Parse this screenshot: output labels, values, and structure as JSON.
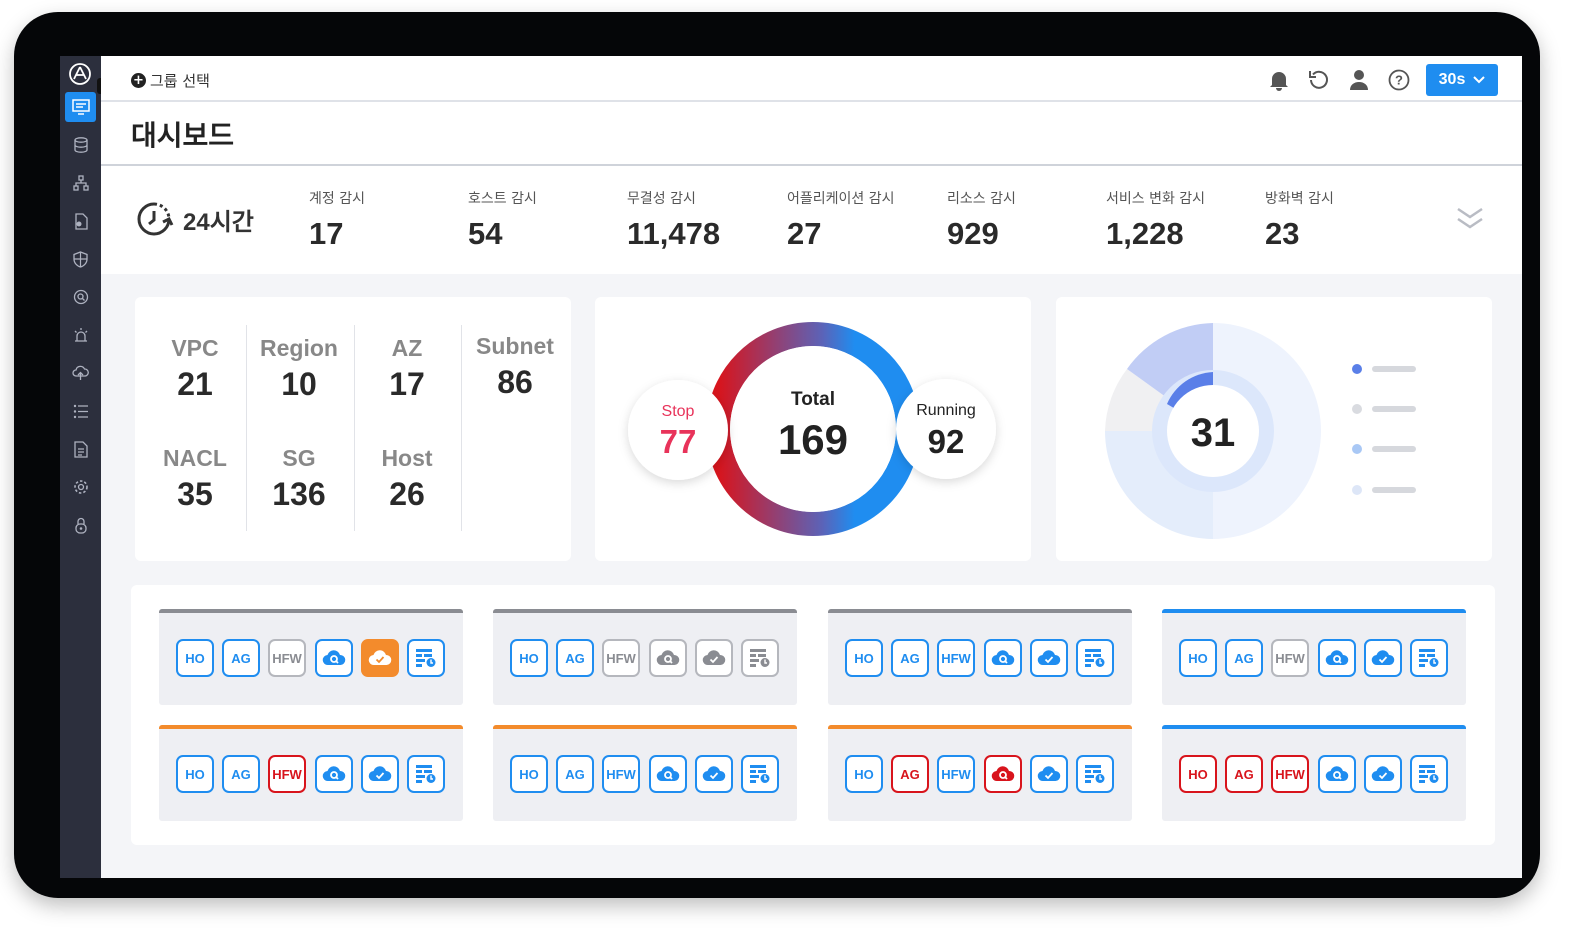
{
  "topbar": {
    "group_select_label": "그룹 선택",
    "icons": [
      "bell-icon",
      "refresh-icon",
      "user-icon",
      "help-icon"
    ],
    "interval": "30s"
  },
  "page": {
    "title": "대시보드"
  },
  "stats": {
    "period": "24시간",
    "items": [
      {
        "label": "계정 감시",
        "value": "17"
      },
      {
        "label": "호스트 감시",
        "value": "54"
      },
      {
        "label": "무결성 감시",
        "value": "11,478"
      },
      {
        "label": "어플리케이션 감시",
        "value": "27"
      },
      {
        "label": "리소스 감시",
        "value": "929"
      },
      {
        "label": "서비스 변화 감시",
        "value": "1,228"
      },
      {
        "label": "방화벽 감시",
        "value": "23"
      }
    ]
  },
  "resources": [
    {
      "label": "VPC",
      "value": "21"
    },
    {
      "label": "Region",
      "value": "10"
    },
    {
      "label": "AZ",
      "value": "17"
    },
    {
      "label": "Subnet",
      "value": "86"
    },
    {
      "label": "NACL",
      "value": "35"
    },
    {
      "label": "SG",
      "value": "136"
    },
    {
      "label": "Host",
      "value": "26"
    }
  ],
  "instances": {
    "total_label": "Total",
    "total_value": "169",
    "stop_label": "Stop",
    "stop_value": "77",
    "running_label": "Running",
    "running_value": "92",
    "colors": {
      "stop": "#e8335a",
      "running": "#1f8df0",
      "stop_ring": "#d8141c"
    }
  },
  "donut": {
    "center_value": "31",
    "legend_colors": [
      "#5a7fe8",
      "#d9dbe0",
      "#a9c8f5",
      "#dde6f7"
    ]
  },
  "tiles": [
    {
      "top": "#8a8c92",
      "badges": [
        [
          "HO",
          "blue"
        ],
        [
          "AG",
          "blue"
        ],
        [
          "HFW",
          "grey"
        ],
        [
          "cloud-search",
          "blue"
        ],
        [
          "cloud-check",
          "orange"
        ],
        [
          "firewall",
          "blue"
        ]
      ]
    },
    {
      "top": "#8a8c92",
      "badges": [
        [
          "HO",
          "blue"
        ],
        [
          "AG",
          "blue"
        ],
        [
          "HFW",
          "grey"
        ],
        [
          "cloud-search",
          "grey"
        ],
        [
          "cloud-check",
          "grey"
        ],
        [
          "firewall",
          "grey"
        ]
      ]
    },
    {
      "top": "#8a8c92",
      "badges": [
        [
          "HO",
          "blue"
        ],
        [
          "AG",
          "blue"
        ],
        [
          "HFW",
          "blue"
        ],
        [
          "cloud-search",
          "blue"
        ],
        [
          "cloud-check",
          "blue"
        ],
        [
          "firewall",
          "blue"
        ]
      ]
    },
    {
      "top": "#1f8df0",
      "badges": [
        [
          "HO",
          "blue"
        ],
        [
          "AG",
          "blue"
        ],
        [
          "HFW",
          "grey"
        ],
        [
          "cloud-search",
          "blue"
        ],
        [
          "cloud-check",
          "blue"
        ],
        [
          "firewall",
          "blue"
        ]
      ]
    },
    {
      "top": "#f38b2c",
      "badges": [
        [
          "HO",
          "blue"
        ],
        [
          "AG",
          "blue"
        ],
        [
          "HFW",
          "red"
        ],
        [
          "cloud-search",
          "blue"
        ],
        [
          "cloud-check",
          "blue"
        ],
        [
          "firewall",
          "blue"
        ]
      ]
    },
    {
      "top": "#f38b2c",
      "badges": [
        [
          "HO",
          "blue"
        ],
        [
          "AG",
          "blue"
        ],
        [
          "HFW",
          "blue"
        ],
        [
          "cloud-search",
          "blue"
        ],
        [
          "cloud-check",
          "blue"
        ],
        [
          "firewall",
          "blue"
        ]
      ]
    },
    {
      "top": "#f38b2c",
      "badges": [
        [
          "HO",
          "blue"
        ],
        [
          "AG",
          "red"
        ],
        [
          "HFW",
          "blue"
        ],
        [
          "cloud-search",
          "red"
        ],
        [
          "cloud-check",
          "blue"
        ],
        [
          "firewall",
          "blue"
        ]
      ]
    },
    {
      "top": "#1f8df0",
      "badges": [
        [
          "HO",
          "red"
        ],
        [
          "AG",
          "red"
        ],
        [
          "HFW",
          "red"
        ],
        [
          "cloud-search",
          "blue"
        ],
        [
          "cloud-check",
          "blue"
        ],
        [
          "firewall",
          "blue"
        ]
      ]
    }
  ]
}
